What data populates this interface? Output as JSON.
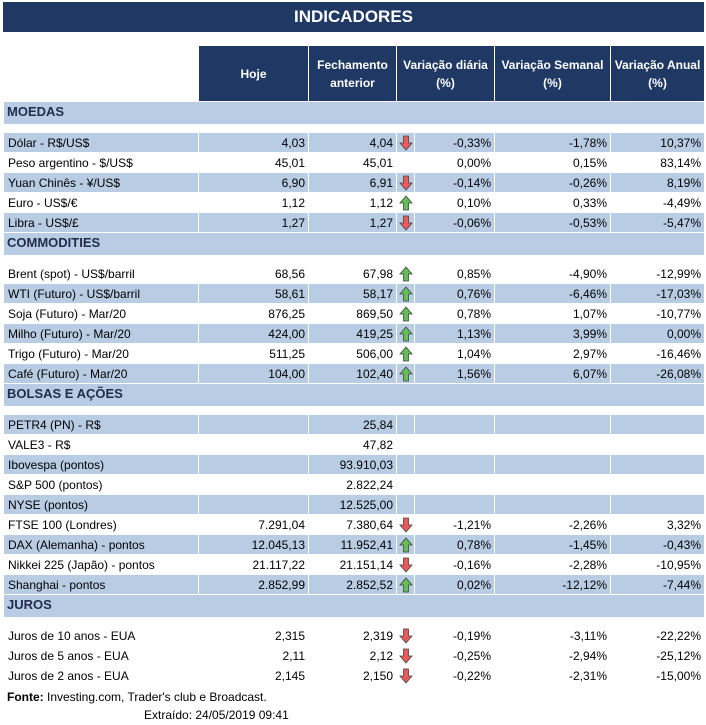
{
  "title": "INDICADORES",
  "header": {
    "hoje": "Hoje",
    "fechamento": "Fechamento anterior",
    "diaria": "Variação diária (%)",
    "semanal": "Variação Semanal (%)",
    "anual": "Variação Anual (%)"
  },
  "sections": [
    {
      "title": "MOEDAS",
      "rows": [
        {
          "label": "Dólar - R$/US$",
          "hoje": "4,03",
          "fechamento": "4,04",
          "arrow": "down",
          "diaria": "-0,33%",
          "semanal": "-1,78%",
          "anual": "10,37%",
          "shaded": true
        },
        {
          "label": "Peso argentino - $/US$",
          "hoje": "45,01",
          "fechamento": "45,01",
          "diaria": "0,00%",
          "semanal": "0,15%",
          "anual": "83,14%",
          "shaded": false
        },
        {
          "label": "Yuan Chinês - ¥/US$",
          "hoje": "6,90",
          "fechamento": "6,91",
          "arrow": "down",
          "diaria": "-0,14%",
          "semanal": "-0,26%",
          "anual": "8,19%",
          "shaded": true
        },
        {
          "label": "Euro - US$/€",
          "hoje": "1,12",
          "fechamento": "1,12",
          "arrow": "up",
          "diaria": "0,10%",
          "semanal": "0,33%",
          "anual": "-4,49%",
          "shaded": false
        },
        {
          "label": "Libra - US$/£",
          "hoje": "1,27",
          "fechamento": "1,27",
          "arrow": "down",
          "diaria": "-0,06%",
          "semanal": "-0,53%",
          "anual": "-5,47%",
          "shaded": true
        }
      ]
    },
    {
      "title": "COMMODITIES",
      "rows": [
        {
          "label": "Brent (spot) - US$/barril",
          "hoje": "68,56",
          "fechamento": "67,98",
          "arrow": "up",
          "diaria": "0,85%",
          "semanal": "-4,90%",
          "anual": "-12,99%",
          "shaded": false
        },
        {
          "label": "WTI (Futuro) - US$/barril",
          "hoje": "58,61",
          "fechamento": "58,17",
          "arrow": "up",
          "diaria": "0,76%",
          "semanal": "-6,46%",
          "anual": "-17,03%",
          "shaded": true
        },
        {
          "label": "Soja (Futuro) - Mar/20",
          "hoje": "876,25",
          "fechamento": "869,50",
          "arrow": "up",
          "diaria": "0,78%",
          "semanal": "1,07%",
          "anual": "-10,77%",
          "shaded": false
        },
        {
          "label": "Milho (Futuro) - Mar/20",
          "hoje": "424,00",
          "fechamento": "419,25",
          "arrow": "up",
          "diaria": "1,13%",
          "semanal": "3,99%",
          "anual": "0,00%",
          "shaded": true
        },
        {
          "label": "Trigo (Futuro) - Mar/20",
          "hoje": "511,25",
          "fechamento": "506,00",
          "arrow": "up",
          "diaria": "1,04%",
          "semanal": "2,97%",
          "anual": "-16,46%",
          "shaded": false
        },
        {
          "label": "Café (Futuro) - Mar/20",
          "hoje": "104,00",
          "fechamento": "102,40",
          "arrow": "up",
          "diaria": "1,56%",
          "semanal": "6,07%",
          "anual": "-26,08%",
          "shaded": true
        }
      ]
    },
    {
      "title": "BOLSAS E AÇÕES",
      "rows": [
        {
          "label": "PETR4 (PN) - R$",
          "fechamento": "25,84",
          "shaded": true
        },
        {
          "label": "VALE3 - R$",
          "fechamento": "47,82",
          "shaded": false
        },
        {
          "label": "Ibovespa (pontos)",
          "fechamento": "93.910,03",
          "shaded": true
        },
        {
          "label": "S&P 500 (pontos)",
          "fechamento": "2.822,24",
          "shaded": false
        },
        {
          "label": "NYSE (pontos)",
          "fechamento": "12.525,00",
          "shaded": true
        },
        {
          "label": "FTSE 100 (Londres)",
          "hoje": "7.291,04",
          "fechamento": "7.380,64",
          "arrow": "down",
          "diaria": "-1,21%",
          "semanal": "-2,26%",
          "anual": "3,32%",
          "shaded": false
        },
        {
          "label": "DAX (Alemanha) - pontos",
          "hoje": "12.045,13",
          "fechamento": "11.952,41",
          "arrow": "up",
          "diaria": "0,78%",
          "semanal": "-1,45%",
          "anual": "-0,43%",
          "shaded": true
        },
        {
          "label": "Nikkei 225 (Japão) - pontos",
          "hoje": "21.117,22",
          "fechamento": "21.151,14",
          "arrow": "down",
          "diaria": "-0,16%",
          "semanal": "-2,28%",
          "anual": "-10,95%",
          "shaded": false
        },
        {
          "label": "Shanghai - pontos",
          "hoje": "2.852,99",
          "fechamento": "2.852,52",
          "arrow": "up",
          "diaria": "0,02%",
          "semanal": "-12,12%",
          "anual": "-7,44%",
          "shaded": true
        }
      ]
    },
    {
      "title": "JUROS",
      "rows": [
        {
          "label": "Juros de 10 anos - EUA",
          "hoje": "2,315",
          "fechamento": "2,319",
          "arrow": "down",
          "diaria": "-0,19%",
          "semanal": "-3,11%",
          "anual": "-22,22%",
          "shaded": false
        },
        {
          "label": "Juros de 5 anos - EUA",
          "hoje": "2,11",
          "fechamento": "2,12",
          "arrow": "down",
          "diaria": "-0,25%",
          "semanal": "-2,94%",
          "anual": "-25,12%",
          "shaded": false
        },
        {
          "label": "Juros de 2 anos - EUA",
          "hoje": "2,145",
          "fechamento": "2,150",
          "arrow": "down",
          "diaria": "-0,22%",
          "semanal": "-2,31%",
          "anual": "-15,00%",
          "shaded": false
        }
      ]
    }
  ],
  "footer": {
    "source_label": "Fonte:",
    "source": "Investing.com, Trader's club e Broadcast.",
    "extracted": "Extraído:  24/05/2019 09:41"
  }
}
